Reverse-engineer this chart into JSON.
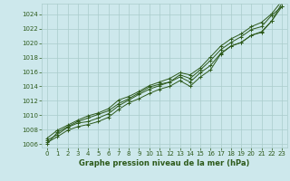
{
  "x": [
    0,
    1,
    2,
    3,
    4,
    5,
    6,
    7,
    8,
    9,
    10,
    11,
    12,
    13,
    14,
    15,
    16,
    17,
    18,
    19,
    20,
    21,
    22,
    23
  ],
  "line1": [
    1006.2,
    1007.0,
    1007.9,
    1008.4,
    1008.7,
    1009.1,
    1009.7,
    1010.8,
    1011.7,
    1012.3,
    1013.0,
    1013.6,
    1014.0,
    1014.8,
    1014.0,
    1015.3,
    1016.3,
    1018.5,
    1019.6,
    1020.1,
    1021.1,
    1021.5,
    1023.1,
    1025.1
  ],
  "line2": [
    1006.5,
    1007.3,
    1008.3,
    1008.9,
    1009.1,
    1009.6,
    1010.2,
    1011.3,
    1012.1,
    1012.9,
    1013.6,
    1014.1,
    1014.6,
    1015.3,
    1014.6,
    1015.9,
    1016.9,
    1018.6,
    1019.6,
    1020.1,
    1021.1,
    1021.6,
    1023.1,
    1025.6
  ],
  "line3": [
    1006.0,
    1007.6,
    1008.4,
    1009.1,
    1009.6,
    1010.1,
    1010.6,
    1011.6,
    1012.3,
    1013.1,
    1013.9,
    1014.3,
    1014.6,
    1015.6,
    1015.1,
    1016.3,
    1017.6,
    1019.1,
    1020.1,
    1020.9,
    1021.9,
    1022.3,
    1023.9,
    1025.1
  ],
  "line4": [
    1006.8,
    1007.9,
    1008.6,
    1009.3,
    1009.9,
    1010.3,
    1010.9,
    1012.1,
    1012.6,
    1013.3,
    1014.1,
    1014.6,
    1015.1,
    1015.9,
    1015.6,
    1016.6,
    1018.1,
    1019.6,
    1020.6,
    1021.3,
    1022.3,
    1022.9,
    1024.1,
    1025.9
  ],
  "ylim": [
    1006,
    1025
  ],
  "xlim": [
    0,
    23
  ],
  "yticks": [
    1006,
    1008,
    1010,
    1012,
    1014,
    1016,
    1018,
    1020,
    1022,
    1024
  ],
  "xticks": [
    0,
    1,
    2,
    3,
    4,
    5,
    6,
    7,
    8,
    9,
    10,
    11,
    12,
    13,
    14,
    15,
    16,
    17,
    18,
    19,
    20,
    21,
    22,
    23
  ],
  "xlabel": "Graphe pression niveau de la mer (hPa)",
  "line_color": "#2d5a1b",
  "marker": "+",
  "bg_color": "#cde8ec",
  "grid_color": "#aacccc",
  "tick_fontsize": 5.0,
  "label_fontsize": 6.0,
  "label_fontweight": "bold"
}
